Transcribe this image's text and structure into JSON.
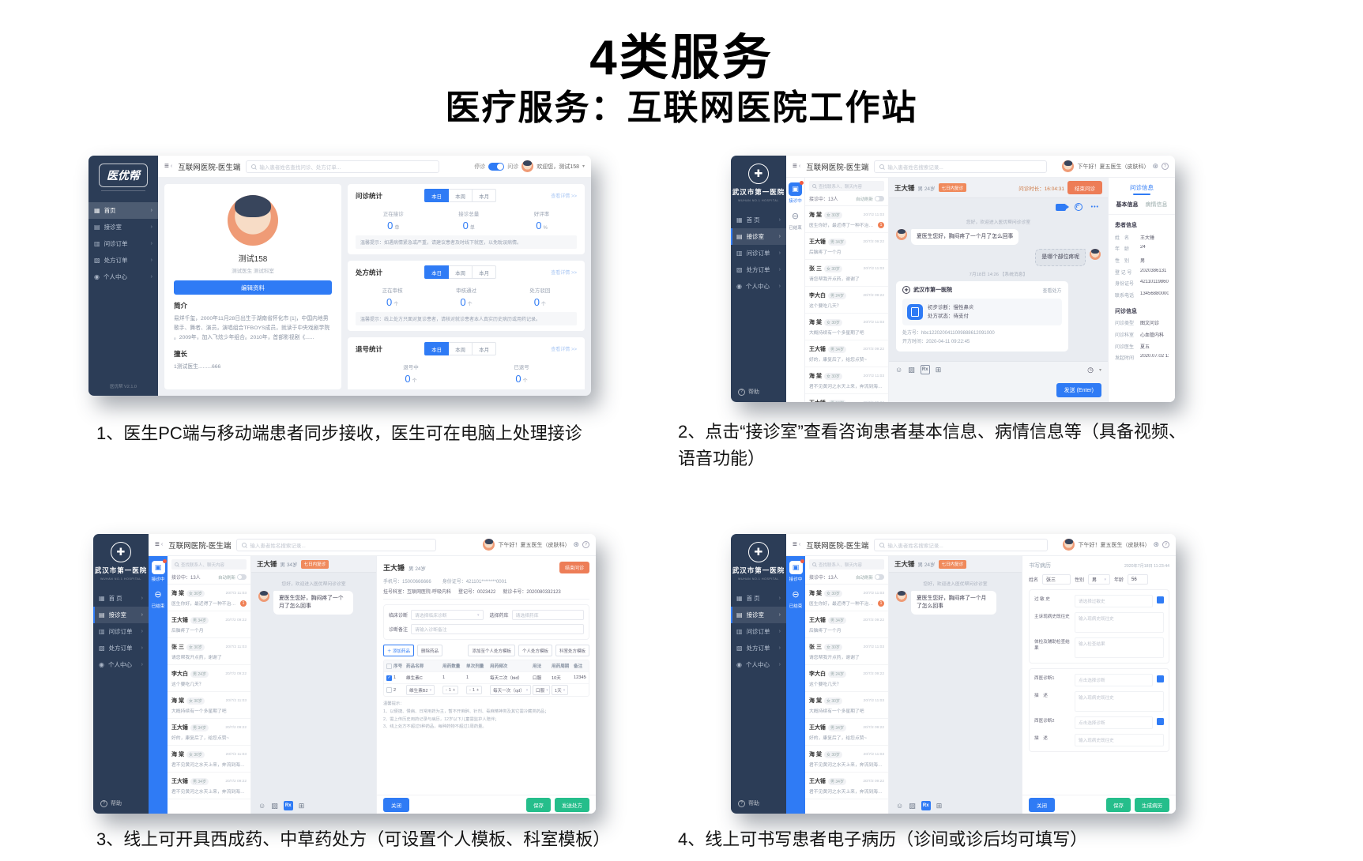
{
  "slide": {
    "title": "4类服务",
    "subtitle": "医疗服务：互联网医院工作站",
    "captions": [
      "1、医生PC端与移动端患者同步接收，医生可在电脑上处理接诊",
      "2、点击“接诊室”查看咨询患者基本信息、病情信息等（具备视频、语音功能）",
      "3、线上可开具西成药、中草药处方（可设置个人模板、科室模板）",
      "4、线上可书写患者电子病历（诊间或诊后均可填写）"
    ]
  },
  "colors": {
    "primary": "#2F7BF5",
    "navy": "#2C3D57",
    "orange": "#ED7D57",
    "green": "#25BE8B",
    "unread_red": "#F08055"
  },
  "doctor_home": {
    "logo": "医优帮",
    "window_title": "互联网医院-医生端",
    "search_placeholder": "输入患者姓名查找问诊、处方订单...",
    "toggle_off_label": "停诊",
    "toggle_on_label": "问诊",
    "welcome": "欢迎您，测试158",
    "version": "医优帮 V2.1.0",
    "menu": [
      {
        "icon": "▦",
        "label": "首页",
        "active": true
      },
      {
        "icon": "▤",
        "label": "接诊室"
      },
      {
        "icon": "▥",
        "label": "问诊订单"
      },
      {
        "icon": "▧",
        "label": "处方订单"
      },
      {
        "icon": "◉",
        "label": "个人中心"
      }
    ],
    "profile": {
      "name": "测试158",
      "sub": "测试医生 测试科室",
      "edit_label": "编辑资料",
      "intro_title": "简介",
      "intro": "易烊千玺，2000年11月28日出生于湖南省怀化市 [1]，中国内地男歌手、舞者、演员，演唱组合TFBOYS成员，就读于中央戏剧学院 。2009年，加入飞炫少年组合。2010年，首部影视剧《......",
      "skill_title": "擅长",
      "skill": "1测试医生.........666"
    },
    "stats": [
      {
        "title": "问诊统计",
        "tabs": [
          "本日",
          "本周",
          "本月"
        ],
        "more": "查看详情 >>",
        "items": [
          {
            "label": "正在接诊",
            "value": "0",
            "unit": "单"
          },
          {
            "label": "接诊总量",
            "value": "0",
            "unit": "单"
          },
          {
            "label": "好评率",
            "value": "0",
            "unit": "%"
          }
        ],
        "tip": "温馨提示：如遇病情紧急或严重，请建议患者及时线下就医，以免耽误病情。"
      },
      {
        "title": "处方统计",
        "tabs": [
          "本日",
          "本周",
          "本月"
        ],
        "more": "查看详情 >>",
        "items": [
          {
            "label": "正在审核",
            "value": "0",
            "unit": "个"
          },
          {
            "label": "审核通过",
            "value": "0",
            "unit": "个"
          },
          {
            "label": "处方驳回",
            "value": "0",
            "unit": "个"
          }
        ],
        "tip": "温馨提示：线上处方只面对复诊患者，请核对就诊患者本人真实历史病历或用药记录。"
      },
      {
        "title": "退号统计",
        "tabs": [
          "本日",
          "本周",
          "本月"
        ],
        "more": "查看详情 >>",
        "items": [
          {
            "label": "退号中",
            "value": "0",
            "unit": "个"
          },
          {
            "label": "已退号",
            "value": "0",
            "unit": "个"
          }
        ],
        "tip": ""
      }
    ]
  },
  "hospital": {
    "name": "武汉市第一医院",
    "name_en": "WUHAN NO.1 HOSPITAL",
    "window_title": "互联网医院-医生端",
    "search_placeholder": "输入患者姓名搜索记录...",
    "greeting": "下午好！夏五医生（皮肤科）",
    "help": "帮助",
    "menu": [
      {
        "icon": "▦",
        "label": "首 页"
      },
      {
        "icon": "▤",
        "label": "接诊室",
        "active": true
      },
      {
        "icon": "▥",
        "label": "问诊订单"
      },
      {
        "icon": "▧",
        "label": "处方订单"
      },
      {
        "icon": "◉",
        "label": "个人中心"
      }
    ],
    "rail": [
      {
        "label": "接诊中",
        "active": true,
        "unread": true
      },
      {
        "label": "已结束"
      }
    ],
    "list": {
      "search_placeholder": "查找联系人、聊天内容",
      "count": "接诊中：13人",
      "auto_refresh": "自动刷新",
      "patients": [
        {
          "name": "海 棠",
          "meta": "女 30岁",
          "time": "20/7/2 11:03",
          "msg": "医生你好，最近得了一种不治症...",
          "unread": "1"
        },
        {
          "name": "王大锤",
          "meta": "男 34岁",
          "time": "20/7/2 09:22",
          "msg": "后脑疼了一个月"
        },
        {
          "name": "张 三",
          "meta": "女 30岁",
          "time": "20/7/2 11:03",
          "msg": "请您帮我开点药，谢谢了"
        },
        {
          "name": "李大白",
          "meta": "男 24岁",
          "time": "20/7/2 09:22",
          "msg": "这个要吃几天？"
        },
        {
          "name": "海 棠",
          "meta": "女 30岁",
          "time": "20/7/2 11:03",
          "msg": "大概持续有一个多星期了吧"
        },
        {
          "name": "王大锤",
          "meta": "男 34岁",
          "time": "20/7/2 09:22",
          "msg": "好的，康复后了，给您点赞~"
        },
        {
          "name": "海 棠",
          "meta": "女 30岁",
          "time": "20/7/2 11:03",
          "msg": "君不见黄河之水天上来，奔流到海不复回"
        },
        {
          "name": "王大锤",
          "meta": "男 34岁",
          "time": "20/7/2 09:22",
          "msg": "君不见黄河之水天上来，奔流到海不复回"
        }
      ]
    }
  },
  "consult": {
    "patient": "王大锤",
    "meta": "男 24岁",
    "badge": "七日内复诊",
    "duration_label": "问诊时长：",
    "duration": "16:04:31",
    "end_btn": "结束问诊",
    "sys": "您好，欢迎进入医优帮问诊诊室",
    "msg_patient": "夏医生您好，胸闷疼了一个月了怎么回事",
    "msg_doctor": "是哪个部位疼呢",
    "divider": "7月18日 14:26 【系统消息】",
    "card": {
      "hospital": "武汉市第一医院",
      "link": "查看处方",
      "line1": "初步诊断：慢性鼻炎",
      "line2": "处方状态：待支付",
      "rx_no": "处方号：hbc1220200411009888612091000",
      "time": "开方时间：2020-04-11 09:22:45"
    },
    "send": "发送 (Enter)",
    "info": {
      "tab_top": "问诊信息",
      "tabs": [
        "基本信息",
        "病情信息"
      ],
      "sec1": "患者信息",
      "rows1": [
        [
          "姓　名",
          "王大锤"
        ],
        [
          "年　龄",
          "24"
        ],
        [
          "性　别",
          "男"
        ],
        [
          "登 记 号",
          "2020386131"
        ],
        [
          "身份证号",
          "421101198601325402"
        ],
        [
          "联系电话",
          "13456880000"
        ]
      ],
      "sec2": "问诊信息",
      "rows2": [
        [
          "问诊类型",
          "图文问诊"
        ],
        [
          "问诊科室",
          "心血管内科"
        ],
        [
          "问诊医生",
          "夏五"
        ],
        [
          "发起时间",
          "2020.07.02 11:20:03"
        ]
      ]
    }
  },
  "prescription": {
    "chat_patient": "王大锤",
    "chat_meta": "男 34岁",
    "chat_badge": "七日内复诊",
    "name": "王大锤",
    "meta": "男 24岁",
    "end_btn": "结束问诊",
    "phone": "手机号：15000666666",
    "idcard": "身份证号：421101********0001",
    "dept": "挂号科室：互联网医院-呼吸内科",
    "reg": "登记号：0023422",
    "card_no": "就诊卡号：2020080332123",
    "f_diag": "临床诊断",
    "f_diag_ph": "请选择临床诊断",
    "f_store": "选择药库",
    "f_store_ph": "请选择药库",
    "f_note": "诊断备注",
    "f_note_ph": "请输入诊断备注",
    "btn_add": "＋ 添加药品",
    "btn_del": "删除药品",
    "btn_tpl_add": "添加至个人处方模板",
    "btn_tpl_personal": "个人处方模板",
    "btn_tpl_dept": "科室处方模板",
    "cols": [
      "序号",
      "药品名称",
      "用药数量",
      "单次剂量",
      "用药频次",
      "用法",
      "用药周期",
      "备注"
    ],
    "rows": [
      {
        "no": "1",
        "name": "维生素C",
        "qty": "1",
        "dose": "1",
        "freq": "每天二次（bid）",
        "route": "口服",
        "cycle": "10天",
        "note": "123456",
        "checked": true
      },
      {
        "no": "2",
        "name": "维生素B2",
        "qty": "1",
        "dose": "1",
        "freq": "每天一次（qd）",
        "route": "口服",
        "cycle": "1天",
        "note": "",
        "checked": false,
        "editable": true
      }
    ],
    "tips_title": "温馨提示：",
    "tips": [
      "1、以便捷、慢病、日常用药为主，暂不开麻醉、针剂、毒麻精神类及其它需冷藏类药品；",
      "2、需上传历史用药记录与病历，12岁以下儿童需监护人陪伴；",
      "3、线上处方不超过5种药品，每种药物不超过1周药量。"
    ],
    "btn_close": "关闭",
    "btn_save": "保存",
    "btn_send": "发送处方"
  },
  "emr": {
    "chat_patient": "王大锤",
    "chat_meta": "男 24岁",
    "chat_badge": "七日内复诊",
    "title": "书写病历",
    "date": "2020年7月18日 11:23:44",
    "name_label": "姓名",
    "name": "张三",
    "sex_label": "性别",
    "sex": "男",
    "age_label": "年龄",
    "age": "56",
    "allergy_label": "过 敏 史",
    "allergy_ph": "请选择过敏史",
    "history_label": "主诉现病史既往史",
    "history_ph": "输入现病史既往史",
    "exam_label": "体检及辅助检查结果",
    "exam_ph": "输入检查结果",
    "diag1_label": "西医诊断1",
    "diag_ph": "点击选择诊断",
    "desc_label": "描　述",
    "desc_ph": "输入现病史既往史",
    "diag2_label": "西医诊断2",
    "btn_close": "关闭",
    "btn_save": "保存",
    "btn_gen": "生成病历"
  }
}
